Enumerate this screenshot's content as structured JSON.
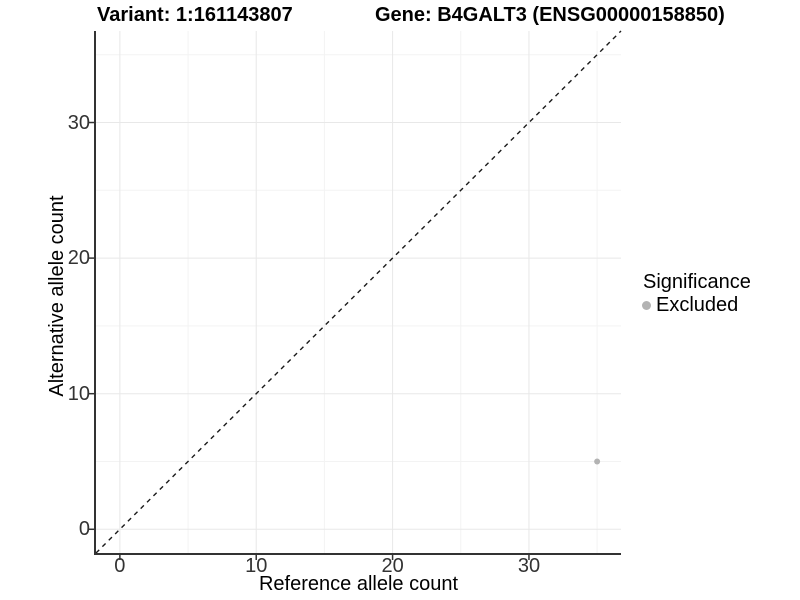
{
  "chart_data": {
    "type": "scatter",
    "title_left": "Variant: 1:161143807",
    "title_right": "Gene: B4GALT3 (ENSG00000158850)",
    "xlabel": "Reference allele count",
    "ylabel": "Alternative allele count",
    "xlim": [
      -1.75,
      36.75
    ],
    "ylim": [
      -1.75,
      36.75
    ],
    "x_major_ticks": [
      0,
      10,
      20,
      30
    ],
    "y_major_ticks": [
      0,
      10,
      20,
      30
    ],
    "x_minor_gridlines": [
      5,
      15,
      25,
      35
    ],
    "y_minor_gridlines": [
      5,
      15,
      25,
      35
    ],
    "grid": "major and minor gridlines, very light grey on white panel",
    "identity_line": {
      "slope": 1,
      "intercept": 0,
      "linetype": "dashed",
      "color": "#1a1a1a"
    },
    "series": [
      {
        "name": "Excluded",
        "color": "#b3b3b3",
        "points": [
          {
            "x": 35,
            "y": 5
          }
        ]
      }
    ],
    "legend": {
      "title": "Significance",
      "position": "right",
      "items": [
        {
          "label": "Excluded",
          "marker": "circle",
          "color": "#b3b3b3"
        }
      ]
    }
  },
  "colors": {
    "background": "#ffffff",
    "axis_line": "#333333",
    "tick_mark": "#333333",
    "tick_label": "#333333",
    "major_grid": "#e8e8e8",
    "minor_grid": "#f3f3f3",
    "point": "#b3b3b3"
  }
}
